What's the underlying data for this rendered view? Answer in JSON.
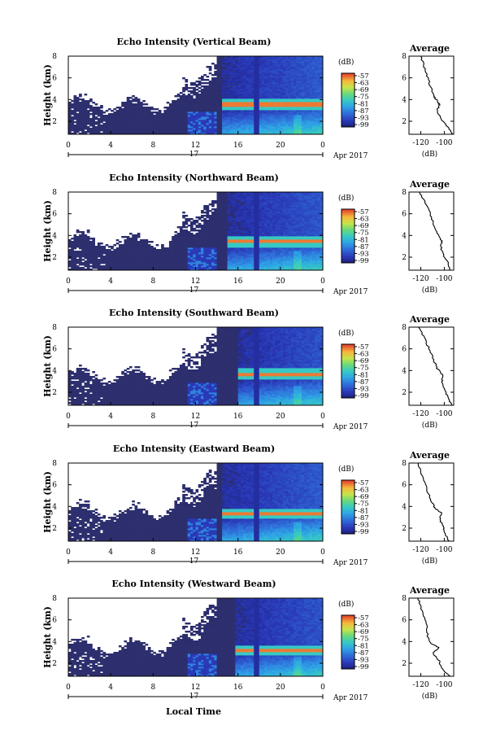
{
  "figure": {
    "xlabel": "Local Time",
    "date_prefix": "17",
    "date_suffix": "Apr 2017"
  },
  "colorbar": {
    "unit": "(dB)",
    "ticks": [
      -57,
      -63,
      -69,
      -75,
      -81,
      -87,
      -93,
      -99
    ],
    "range": [
      -99,
      -57
    ]
  },
  "chart_data": [
    {
      "type": "heatmap",
      "title": "Echo Intensity (Vertical Beam)",
      "ylabel": "Height (km)",
      "x_ticks": [
        "0",
        "4",
        "8",
        "12",
        "16",
        "20",
        "0"
      ],
      "x_range_hours": [
        0,
        24
      ],
      "y_range_km": [
        0.8,
        8
      ],
      "y_ticks": [
        2,
        4,
        6,
        8
      ],
      "colorbar_ticks": [
        -57,
        -63,
        -69,
        -75,
        -81,
        -87,
        -93,
        -99
      ],
      "bright_layer": {
        "start_hour": 14.3,
        "height_km": 3.5
      },
      "average_profile": {
        "title": "Average",
        "xlabel": "(dB)",
        "x_ticks": [
          -120,
          -100
        ],
        "x_range": [
          -130,
          -92
        ],
        "y_ticks": [
          2,
          4,
          6,
          8
        ],
        "profile": [
          [
            -93,
            0.8
          ],
          [
            -97,
            1.5
          ],
          [
            -103,
            2.2
          ],
          [
            -106,
            3.0
          ],
          [
            -104,
            3.5
          ],
          [
            -106,
            3.9
          ],
          [
            -109,
            4.3
          ],
          [
            -111,
            5.0
          ],
          [
            -114,
            6.0
          ],
          [
            -117,
            7.0
          ],
          [
            -120,
            8.0
          ]
        ]
      }
    },
    {
      "type": "heatmap",
      "title": "Echo Intensity (Northward Beam)",
      "ylabel": "Height (km)",
      "x_ticks": [
        "0",
        "4",
        "8",
        "12",
        "16",
        "20",
        "0"
      ],
      "x_range_hours": [
        0,
        24
      ],
      "y_range_km": [
        0.8,
        8
      ],
      "y_ticks": [
        2,
        4,
        6,
        8
      ],
      "colorbar_ticks": [
        -57,
        -63,
        -69,
        -75,
        -81,
        -87,
        -93,
        -99
      ],
      "bright_layer": {
        "start_hour": 15.0,
        "height_km": 3.4
      },
      "average_profile": {
        "title": "Average",
        "xlabel": "(dB)",
        "x_ticks": [
          -120,
          -100
        ],
        "x_range": [
          -130,
          -92
        ],
        "y_ticks": [
          2,
          4,
          6,
          8
        ],
        "profile": [
          [
            -95,
            0.8
          ],
          [
            -97,
            1.5
          ],
          [
            -101,
            2.2
          ],
          [
            -103,
            3.0
          ],
          [
            -102,
            3.5
          ],
          [
            -106,
            4.2
          ],
          [
            -109,
            5.0
          ],
          [
            -112,
            6.0
          ],
          [
            -116,
            7.0
          ],
          [
            -121,
            8.0
          ]
        ]
      }
    },
    {
      "type": "heatmap",
      "title": "Echo Intensity (Southward Beam)",
      "ylabel": "Height (km)",
      "x_ticks": [
        "0",
        "4",
        "8",
        "12",
        "16",
        "20",
        "0"
      ],
      "x_range_hours": [
        0,
        24
      ],
      "y_range_km": [
        0.8,
        8
      ],
      "y_ticks": [
        2,
        4,
        6,
        8
      ],
      "colorbar_ticks": [
        -57,
        -63,
        -69,
        -75,
        -81,
        -87,
        -93,
        -99
      ],
      "bright_layer": {
        "start_hour": 15.8,
        "height_km": 3.6
      },
      "average_profile": {
        "title": "Average",
        "xlabel": "(dB)",
        "x_ticks": [
          -120,
          -100
        ],
        "x_range": [
          -130,
          -92
        ],
        "y_ticks": [
          2,
          4,
          6,
          8
        ],
        "profile": [
          [
            -94,
            0.8
          ],
          [
            -97,
            1.5
          ],
          [
            -100,
            2.2
          ],
          [
            -102,
            3.0
          ],
          [
            -101,
            3.5
          ],
          [
            -106,
            4.2
          ],
          [
            -109,
            5.0
          ],
          [
            -113,
            6.0
          ],
          [
            -117,
            7.0
          ],
          [
            -122,
            8.0
          ]
        ]
      }
    },
    {
      "type": "heatmap",
      "title": "Echo Intensity (Eastward Beam)",
      "ylabel": "Height (km)",
      "x_ticks": [
        "0",
        "4",
        "8",
        "12",
        "16",
        "20",
        "0"
      ],
      "x_range_hours": [
        0,
        24
      ],
      "y_range_km": [
        0.8,
        8
      ],
      "y_ticks": [
        2,
        4,
        6,
        8
      ],
      "colorbar_ticks": [
        -57,
        -63,
        -69,
        -75,
        -81,
        -87,
        -93,
        -99
      ],
      "bright_layer": {
        "start_hour": 14.3,
        "height_km": 3.3
      },
      "average_profile": {
        "title": "Average",
        "xlabel": "(dB)",
        "x_ticks": [
          -120,
          -100
        ],
        "x_range": [
          -130,
          -92
        ],
        "y_ticks": [
          2,
          4,
          6,
          8
        ],
        "profile": [
          [
            -96,
            0.8
          ],
          [
            -100,
            1.6
          ],
          [
            -101,
            2.2
          ],
          [
            -104,
            2.8
          ],
          [
            -102,
            3.4
          ],
          [
            -108,
            3.8
          ],
          [
            -110,
            4.3
          ],
          [
            -113,
            5.0
          ],
          [
            -116,
            6.0
          ],
          [
            -120,
            7.2
          ],
          [
            -122,
            8.0
          ]
        ]
      }
    },
    {
      "type": "heatmap",
      "title": "Echo Intensity (Westward Beam)",
      "ylabel": "Height (km)",
      "x_ticks": [
        "0",
        "4",
        "8",
        "12",
        "16",
        "20",
        "0"
      ],
      "x_range_hours": [
        0,
        24
      ],
      "y_range_km": [
        0.8,
        8
      ],
      "y_ticks": [
        2,
        4,
        6,
        8
      ],
      "colorbar_ticks": [
        -57,
        -63,
        -69,
        -75,
        -81,
        -87,
        -93,
        -99
      ],
      "bright_layer": {
        "start_hour": 15.6,
        "height_km": 3.1
      },
      "average_profile": {
        "title": "Average",
        "xlabel": "(dB)",
        "x_ticks": [
          -120,
          -100
        ],
        "x_range": [
          -130,
          -92
        ],
        "y_ticks": [
          2,
          4,
          6,
          8
        ],
        "profile": [
          [
            -95,
            0.8
          ],
          [
            -103,
            1.6
          ],
          [
            -104,
            2.2
          ],
          [
            -110,
            3.0
          ],
          [
            -104,
            3.4
          ],
          [
            -111,
            3.8
          ],
          [
            -114,
            4.5
          ],
          [
            -115,
            5.5
          ],
          [
            -118,
            6.5
          ],
          [
            -121,
            7.5
          ],
          [
            -122,
            8.0
          ]
        ]
      }
    }
  ]
}
